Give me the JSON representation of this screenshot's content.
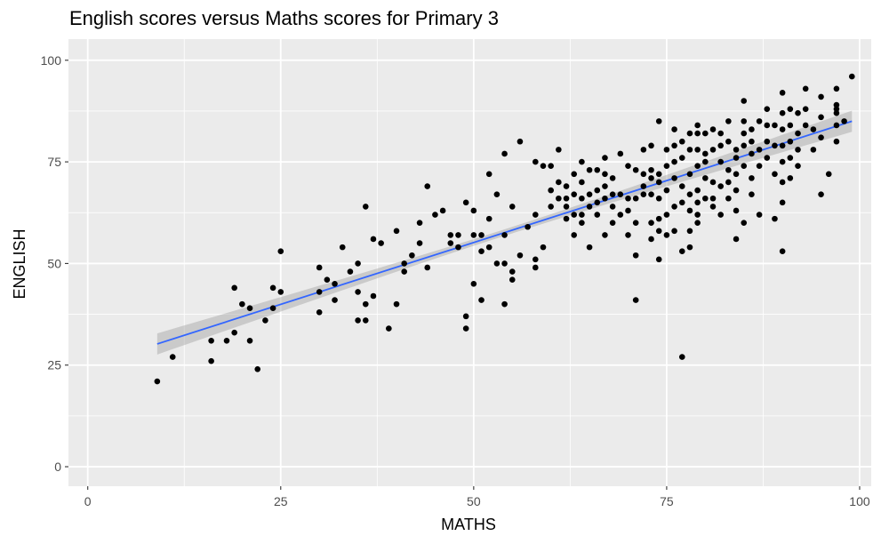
{
  "chart_data": {
    "type": "scatter",
    "title": "English scores versus Maths scores for Primary 3",
    "xlabel": "MATHS",
    "ylabel": "ENGLISH",
    "xlim": [
      -2.5,
      101.5
    ],
    "ylim": [
      -4.8,
      105.2
    ],
    "x_ticks": [
      0,
      25,
      50,
      75,
      100
    ],
    "y_ticks": [
      0,
      25,
      50,
      75,
      100
    ],
    "grid": true,
    "legend": "none",
    "colors": {
      "panel": "#ebebeb",
      "grid": "#ffffff",
      "points": "#000000",
      "fit_line": "#3366ff",
      "ribbon": "#999999"
    },
    "fit": {
      "method": "lm",
      "from": [
        9,
        30.2
      ],
      "to": [
        99,
        85
      ],
      "ci_halfwidth_ends": 2.6,
      "ci_halfwidth_center": 0.8
    },
    "points": [
      [
        9,
        21
      ],
      [
        11,
        27
      ],
      [
        16,
        26
      ],
      [
        16,
        31
      ],
      [
        18,
        31
      ],
      [
        19,
        33
      ],
      [
        19,
        44
      ],
      [
        20,
        40
      ],
      [
        21,
        31
      ],
      [
        21,
        39
      ],
      [
        22,
        24
      ],
      [
        23,
        36
      ],
      [
        24,
        39
      ],
      [
        24,
        44
      ],
      [
        25,
        43
      ],
      [
        25,
        53
      ],
      [
        30,
        38
      ],
      [
        30,
        43
      ],
      [
        30,
        49
      ],
      [
        31,
        46
      ],
      [
        32,
        41
      ],
      [
        32,
        45
      ],
      [
        33,
        54
      ],
      [
        34,
        48
      ],
      [
        35,
        43
      ],
      [
        35,
        50
      ],
      [
        35,
        36
      ],
      [
        36,
        36
      ],
      [
        36,
        40
      ],
      [
        36,
        64
      ],
      [
        37,
        42
      ],
      [
        37,
        56
      ],
      [
        38,
        55
      ],
      [
        39,
        34
      ],
      [
        40,
        58
      ],
      [
        40,
        40
      ],
      [
        41,
        48
      ],
      [
        41,
        50
      ],
      [
        42,
        52
      ],
      [
        43,
        55
      ],
      [
        43,
        60
      ],
      [
        44,
        49
      ],
      [
        44,
        69
      ],
      [
        45,
        62
      ],
      [
        46,
        63
      ],
      [
        47,
        55
      ],
      [
        47,
        57
      ],
      [
        48,
        54
      ],
      [
        48,
        57
      ],
      [
        49,
        34
      ],
      [
        49,
        37
      ],
      [
        49,
        65
      ],
      [
        50,
        45
      ],
      [
        50,
        57
      ],
      [
        50,
        63
      ],
      [
        51,
        41
      ],
      [
        51,
        53
      ],
      [
        51,
        57
      ],
      [
        52,
        72
      ],
      [
        52,
        61
      ],
      [
        52,
        54
      ],
      [
        53,
        67
      ],
      [
        53,
        50
      ],
      [
        54,
        40
      ],
      [
        54,
        50
      ],
      [
        54,
        57
      ],
      [
        54,
        77
      ],
      [
        55,
        46
      ],
      [
        55,
        48
      ],
      [
        55,
        64
      ],
      [
        56,
        80
      ],
      [
        56,
        52
      ],
      [
        57,
        59
      ],
      [
        58,
        75
      ],
      [
        58,
        62
      ],
      [
        58,
        51
      ],
      [
        58,
        49
      ],
      [
        59,
        74
      ],
      [
        59,
        54
      ],
      [
        60,
        68
      ],
      [
        60,
        74
      ],
      [
        60,
        64
      ],
      [
        61,
        78
      ],
      [
        61,
        66
      ],
      [
        61,
        70
      ],
      [
        62,
        66
      ],
      [
        62,
        61
      ],
      [
        62,
        64
      ],
      [
        62,
        69
      ],
      [
        63,
        72
      ],
      [
        63,
        67
      ],
      [
        63,
        62
      ],
      [
        63,
        57
      ],
      [
        64,
        62
      ],
      [
        64,
        66
      ],
      [
        64,
        60
      ],
      [
        64,
        70
      ],
      [
        64,
        75
      ],
      [
        65,
        73
      ],
      [
        65,
        54
      ],
      [
        65,
        64
      ],
      [
        65,
        67
      ],
      [
        66,
        73
      ],
      [
        66,
        62
      ],
      [
        66,
        68
      ],
      [
        66,
        65
      ],
      [
        67,
        66
      ],
      [
        67,
        69
      ],
      [
        67,
        57
      ],
      [
        67,
        76
      ],
      [
        67,
        72
      ],
      [
        68,
        71
      ],
      [
        68,
        64
      ],
      [
        68,
        60
      ],
      [
        68,
        67
      ],
      [
        69,
        77
      ],
      [
        69,
        67
      ],
      [
        69,
        62
      ],
      [
        70,
        74
      ],
      [
        70,
        66
      ],
      [
        70,
        63
      ],
      [
        70,
        57
      ],
      [
        71,
        41
      ],
      [
        71,
        52
      ],
      [
        71,
        60
      ],
      [
        71,
        66
      ],
      [
        71,
        73
      ],
      [
        72,
        72
      ],
      [
        72,
        67
      ],
      [
        72,
        78
      ],
      [
        72,
        69
      ],
      [
        73,
        71
      ],
      [
        73,
        67
      ],
      [
        73,
        73
      ],
      [
        73,
        79
      ],
      [
        73,
        60
      ],
      [
        73,
        56
      ],
      [
        74,
        85
      ],
      [
        74,
        72
      ],
      [
        74,
        51
      ],
      [
        74,
        58
      ],
      [
        74,
        61
      ],
      [
        74,
        66
      ],
      [
        74,
        70
      ],
      [
        75,
        78
      ],
      [
        75,
        74
      ],
      [
        75,
        68
      ],
      [
        75,
        62
      ],
      [
        75,
        57
      ],
      [
        76,
        83
      ],
      [
        76,
        79
      ],
      [
        76,
        75
      ],
      [
        76,
        71
      ],
      [
        76,
        64
      ],
      [
        76,
        58
      ],
      [
        77,
        27
      ],
      [
        77,
        53
      ],
      [
        77,
        76
      ],
      [
        77,
        69
      ],
      [
        77,
        65
      ],
      [
        77,
        80
      ],
      [
        78,
        54
      ],
      [
        78,
        58
      ],
      [
        78,
        63
      ],
      [
        78,
        67
      ],
      [
        78,
        72
      ],
      [
        78,
        78
      ],
      [
        78,
        82
      ],
      [
        79,
        60
      ],
      [
        79,
        68
      ],
      [
        79,
        74
      ],
      [
        79,
        78
      ],
      [
        79,
        82
      ],
      [
        79,
        84
      ],
      [
        79,
        62
      ],
      [
        79,
        65
      ],
      [
        80,
        75
      ],
      [
        80,
        71
      ],
      [
        80,
        66
      ],
      [
        80,
        82
      ],
      [
        80,
        77
      ],
      [
        81,
        83
      ],
      [
        81,
        78
      ],
      [
        81,
        70
      ],
      [
        81,
        64
      ],
      [
        81,
        66
      ],
      [
        82,
        82
      ],
      [
        82,
        75
      ],
      [
        82,
        69
      ],
      [
        82,
        62
      ],
      [
        82,
        79
      ],
      [
        83,
        73
      ],
      [
        83,
        80
      ],
      [
        83,
        66
      ],
      [
        83,
        70
      ],
      [
        83,
        85
      ],
      [
        84,
        76
      ],
      [
        84,
        72
      ],
      [
        84,
        63
      ],
      [
        84,
        78
      ],
      [
        84,
        68
      ],
      [
        84,
        56
      ],
      [
        85,
        90
      ],
      [
        85,
        85
      ],
      [
        85,
        82
      ],
      [
        85,
        79
      ],
      [
        85,
        74
      ],
      [
        85,
        60
      ],
      [
        86,
        83
      ],
      [
        86,
        77
      ],
      [
        86,
        71
      ],
      [
        86,
        67
      ],
      [
        86,
        80
      ],
      [
        87,
        85
      ],
      [
        87,
        78
      ],
      [
        87,
        74
      ],
      [
        87,
        62
      ],
      [
        88,
        88
      ],
      [
        88,
        80
      ],
      [
        88,
        76
      ],
      [
        88,
        84
      ],
      [
        89,
        61
      ],
      [
        89,
        72
      ],
      [
        89,
        79
      ],
      [
        89,
        84
      ],
      [
        90,
        92
      ],
      [
        90,
        87
      ],
      [
        90,
        83
      ],
      [
        90,
        79
      ],
      [
        90,
        75
      ],
      [
        90,
        70
      ],
      [
        90,
        65
      ],
      [
        90,
        53
      ],
      [
        91,
        88
      ],
      [
        91,
        84
      ],
      [
        91,
        80
      ],
      [
        91,
        76
      ],
      [
        91,
        71
      ],
      [
        92,
        87
      ],
      [
        92,
        82
      ],
      [
        92,
        78
      ],
      [
        92,
        74
      ],
      [
        93,
        93
      ],
      [
        93,
        88
      ],
      [
        93,
        84
      ],
      [
        94,
        83
      ],
      [
        94,
        78
      ],
      [
        95,
        91
      ],
      [
        95,
        86
      ],
      [
        95,
        81
      ],
      [
        95,
        67
      ],
      [
        96,
        72
      ],
      [
        97,
        93
      ],
      [
        97,
        89
      ],
      [
        97,
        84
      ],
      [
        97,
        80
      ],
      [
        97,
        88
      ],
      [
        97,
        87
      ],
      [
        98,
        85
      ],
      [
        99,
        96
      ]
    ]
  }
}
